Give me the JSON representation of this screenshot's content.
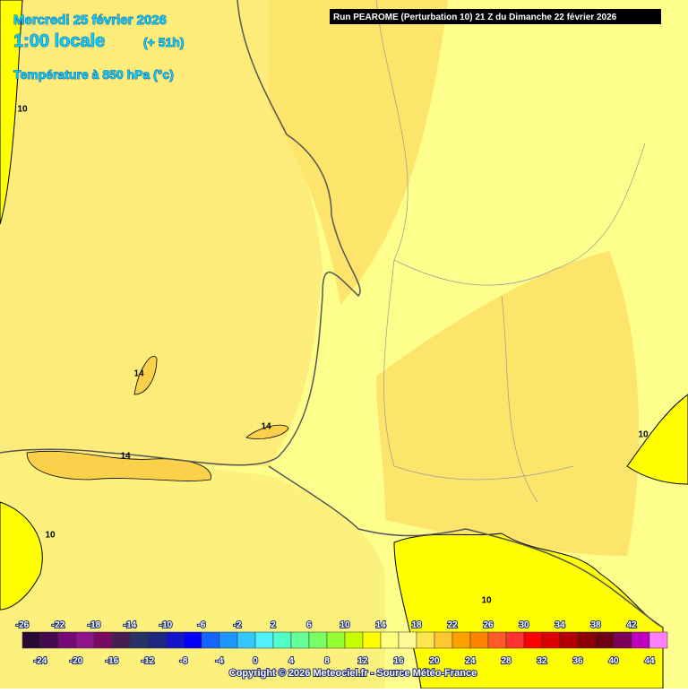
{
  "header": {
    "date": "Mercredi 25 février 2026",
    "time": "1:00 locale",
    "lead": "(+ 51h)",
    "variable": "Température à 850 hPa (°c)",
    "run": "Run PEAROME (Perturbation 10) 21 Z du Dimanche 22 février 2026"
  },
  "contour_labels": [
    "10",
    "14",
    "14",
    "14",
    "10",
    "10",
    "10"
  ],
  "legend": {
    "top_labels": [
      -26,
      -22,
      -18,
      -14,
      -10,
      -6,
      -2,
      2,
      6,
      10,
      14,
      18,
      22,
      26,
      30,
      34,
      38,
      42
    ],
    "bottom_labels": [
      -24,
      -20,
      -16,
      -12,
      -8,
      -4,
      0,
      4,
      8,
      12,
      16,
      20,
      24,
      28,
      32,
      36,
      40,
      44
    ],
    "colors": [
      "#2a0a32",
      "#460a50",
      "#780a78",
      "#8c148c",
      "#780a64",
      "#461e50",
      "#283264",
      "#1e2880",
      "#1414c8",
      "#0000ff",
      "#1464ff",
      "#1e96ff",
      "#32c8ff",
      "#50f0ff",
      "#50ffc8",
      "#64ff96",
      "#78ff64",
      "#96ff32",
      "#c8ff00",
      "#ffff00",
      "#ffff80",
      "#fffa96",
      "#ffe650",
      "#ffc832",
      "#ffa000",
      "#ff8200",
      "#ff5a28",
      "#ff3232",
      "#ff0000",
      "#dc0000",
      "#b40000",
      "#8c0000",
      "#6e0014",
      "#7d005a",
      "#c000c0",
      "#ff80ff"
    ]
  },
  "copyright": "Copyright © 2026 Meteociel.fr - Source Météo-France"
}
